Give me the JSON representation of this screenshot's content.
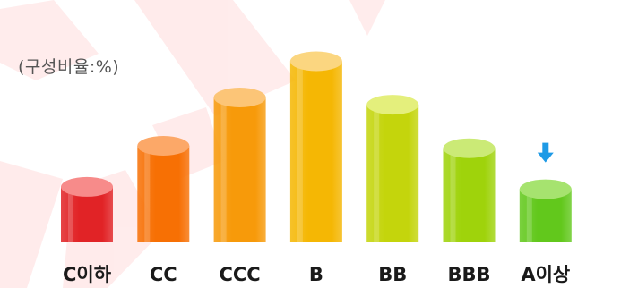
{
  "unit_label": "(구성비율:%)",
  "watermark_icon": "red-watermark-shape",
  "arrow_icon": "down-arrow-icon",
  "arrow_color": "#1e9ae6",
  "chart_data": {
    "type": "bar",
    "categories": [
      "C이하",
      "CC",
      "CCC",
      "B",
      "BB",
      "BBB",
      "A이상"
    ],
    "values": [
      23,
      40,
      60,
      75,
      57,
      39,
      22
    ],
    "ylim": [
      0,
      80
    ],
    "grid": false,
    "legend": "none",
    "unit_label": "(구성비율:%)",
    "colors": [
      "#e12326",
      "#f77004",
      "#f79a0a",
      "#f5b704",
      "#c4d50c",
      "#9fd30b",
      "#62c81c"
    ],
    "cap_colors": [
      "#f78b8a",
      "#fca868",
      "#fcc577",
      "#fbd680",
      "#e4ef7c",
      "#cbea76",
      "#a6e36f"
    ],
    "annotation": {
      "category": "A이상",
      "icon": "down-arrow-icon"
    }
  }
}
